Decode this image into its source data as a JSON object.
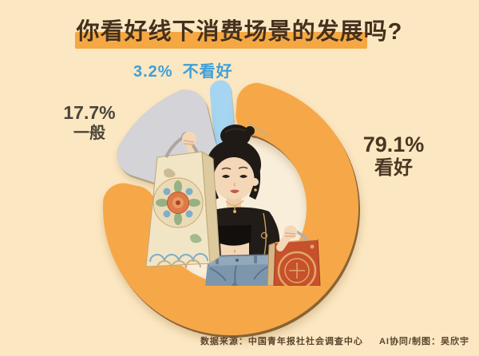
{
  "title": {
    "text": "你看好线下消费场景的发展吗?"
  },
  "chart_data": {
    "type": "pie",
    "donut": true,
    "title": "你看好线下消费场景的发展吗?",
    "unit": "%",
    "segments": [
      {
        "label": "不看好",
        "value": 3.2,
        "color": "#A6D5F2",
        "label_color": "#3E9FD9"
      },
      {
        "label": "看好",
        "value": 79.1,
        "color": "#F6A848",
        "label_color": "#4A3522"
      },
      {
        "label": "一般",
        "value": 17.7,
        "color": "#D4D3D7",
        "label_color": "#4C4539"
      }
    ],
    "legend_position": "around-donut",
    "center_illustration": "young-woman-holding-two-gift-bags"
  },
  "labels": {
    "pessimistic": {
      "pct": "3.2%",
      "text": "不看好"
    },
    "neutral": {
      "pct": "17.7%",
      "text": "一般"
    },
    "optimistic": {
      "pct": "79.1%",
      "text": "看好"
    }
  },
  "footer": {
    "source": "数据来源：中国青年报社社会调查中心",
    "credit": "AI协同/制图：吴欣宇"
  },
  "colors": {
    "background": "#FBE7C1",
    "hole": "#F8EEDA",
    "title_text": "#45301C",
    "title_bar": "#F5A742"
  }
}
